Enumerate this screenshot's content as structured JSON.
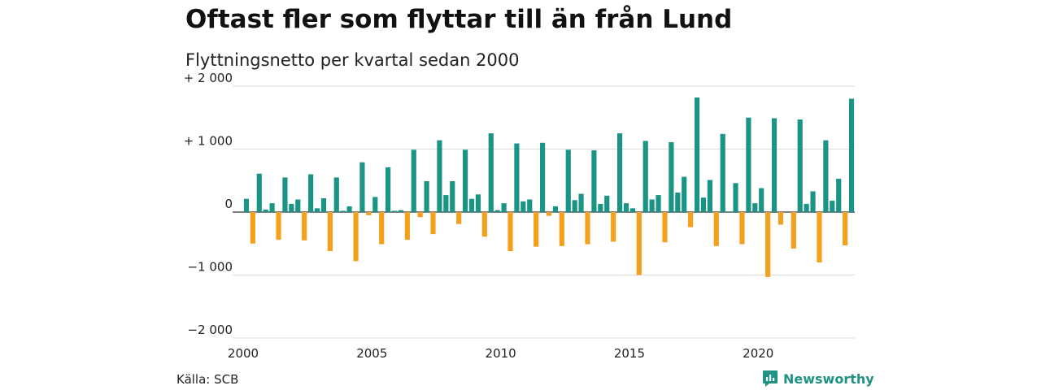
{
  "title": "Oftast fler som flyttar till än från Lund",
  "subtitle": "Flyttningsnetto per kvartal sedan 2000",
  "source": "Källa: SCB",
  "brand": "Newsworthy",
  "colors": {
    "positive": "#1a9585",
    "negative": "#f5a01d",
    "grid": "#dddddd",
    "zero": "#333333"
  },
  "chart_data": {
    "type": "bar",
    "x_start": "2000 Q1",
    "x_ticks": [
      "2000",
      "2005",
      "2010",
      "2015",
      "2020"
    ],
    "y_ticks": [
      "+ 2 000",
      "+ 1 000",
      "0",
      "−1 000",
      "−2 000"
    ],
    "y_tick_values": [
      2000,
      1000,
      0,
      -1000,
      -2000
    ],
    "ylim": [
      -2000,
      2000
    ],
    "grid": true,
    "values": [
      210,
      -500,
      610,
      40,
      140,
      -440,
      550,
      130,
      200,
      -450,
      600,
      60,
      220,
      -620,
      550,
      20,
      90,
      -780,
      790,
      -50,
      240,
      -510,
      710,
      20,
      30,
      -440,
      990,
      -80,
      490,
      -350,
      1140,
      270,
      490,
      -190,
      990,
      210,
      280,
      -390,
      1250,
      30,
      140,
      -620,
      1090,
      170,
      200,
      -550,
      1100,
      -60,
      90,
      -540,
      990,
      190,
      290,
      -510,
      980,
      130,
      260,
      -470,
      1250,
      140,
      60,
      -1000,
      1130,
      200,
      270,
      -480,
      1110,
      310,
      560,
      -240,
      1820,
      230,
      510,
      -540,
      1240,
      10,
      460,
      -510,
      1500,
      140,
      380,
      -1030,
      1490,
      -200,
      0,
      -580,
      1470,
      130,
      330,
      -800,
      1140,
      180,
      530,
      -530,
      1800
    ]
  }
}
